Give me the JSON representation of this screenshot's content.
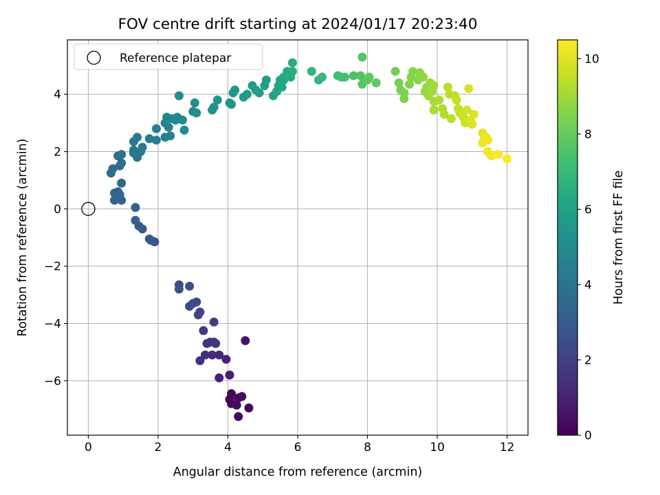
{
  "chart_data": {
    "type": "scatter",
    "title": "FOV centre drift starting at 2024/01/17 20:23:40",
    "xlabel": "Angular distance from reference (arcmin)",
    "ylabel": "Rotation from reference (arcmin)",
    "xlim": [
      -0.6,
      12.6
    ],
    "ylim": [
      -7.9,
      5.9
    ],
    "x_ticks": [
      0,
      2,
      4,
      6,
      8,
      10,
      12
    ],
    "y_ticks": [
      -6,
      -4,
      -2,
      0,
      2,
      4
    ],
    "grid": true,
    "legend": {
      "position": "top-left",
      "entries": [
        "Reference platepar"
      ]
    },
    "reference_point": {
      "x": 0,
      "y": 0
    },
    "colorbar": {
      "label": "Hours from first FF file",
      "colormap": "viridis",
      "range": [
        0,
        10.5
      ],
      "ticks": [
        0,
        2,
        4,
        6,
        8,
        10
      ]
    },
    "series": [
      {
        "points": [
          {
            "x": 4.5,
            "y": -4.6,
            "c": 0.6
          },
          {
            "x": 4.1,
            "y": -6.45,
            "c": 0.2
          },
          {
            "x": 4.3,
            "y": -6.6,
            "c": 0.25
          },
          {
            "x": 4.05,
            "y": -6.65,
            "c": 0.1
          },
          {
            "x": 4.1,
            "y": -6.8,
            "c": 0.15
          },
          {
            "x": 4.25,
            "y": -6.85,
            "c": 0.3
          },
          {
            "x": 4.6,
            "y": -6.95,
            "c": 0.05
          },
          {
            "x": 4.3,
            "y": -7.25,
            "c": 0.2
          },
          {
            "x": 4.4,
            "y": -6.55,
            "c": 0.35
          },
          {
            "x": 4.05,
            "y": -5.8,
            "c": 0.8
          },
          {
            "x": 3.75,
            "y": -5.9,
            "c": 1.0
          },
          {
            "x": 3.95,
            "y": -5.25,
            "c": 1.1
          },
          {
            "x": 3.75,
            "y": -5.1,
            "c": 1.2
          },
          {
            "x": 3.55,
            "y": -5.1,
            "c": 1.3
          },
          {
            "x": 3.35,
            "y": -5.1,
            "c": 1.35
          },
          {
            "x": 3.2,
            "y": -5.3,
            "c": 1.4
          },
          {
            "x": 3.4,
            "y": -4.7,
            "c": 1.5
          },
          {
            "x": 3.5,
            "y": -4.65,
            "c": 1.55
          },
          {
            "x": 3.6,
            "y": -4.65,
            "c": 1.6
          },
          {
            "x": 3.65,
            "y": -4.7,
            "c": 1.65
          },
          {
            "x": 3.3,
            "y": -4.25,
            "c": 1.8
          },
          {
            "x": 3.6,
            "y": -3.95,
            "c": 1.9
          },
          {
            "x": 3.2,
            "y": -3.6,
            "c": 2.0
          },
          {
            "x": 3.15,
            "y": -3.7,
            "c": 2.05
          },
          {
            "x": 2.9,
            "y": -3.4,
            "c": 2.2
          },
          {
            "x": 3.0,
            "y": -3.3,
            "c": 2.25
          },
          {
            "x": 3.1,
            "y": -3.25,
            "c": 2.3
          },
          {
            "x": 2.6,
            "y": -2.65,
            "c": 2.5
          },
          {
            "x": 2.6,
            "y": -2.8,
            "c": 2.55
          },
          {
            "x": 2.9,
            "y": -2.7,
            "c": 2.6
          },
          {
            "x": 1.9,
            "y": -1.15,
            "c": 2.8
          },
          {
            "x": 1.8,
            "y": -1.1,
            "c": 2.85
          },
          {
            "x": 1.75,
            "y": -1.05,
            "c": 2.9
          },
          {
            "x": 1.55,
            "y": -0.7,
            "c": 3.0
          },
          {
            "x": 1.45,
            "y": -0.6,
            "c": 3.05
          },
          {
            "x": 1.35,
            "y": -0.4,
            "c": 3.1
          },
          {
            "x": 1.35,
            "y": 0.05,
            "c": 3.2
          },
          {
            "x": 0.75,
            "y": 0.3,
            "c": 3.3
          },
          {
            "x": 0.95,
            "y": 0.3,
            "c": 3.35
          },
          {
            "x": 0.9,
            "y": 0.5,
            "c": 3.4
          },
          {
            "x": 0.85,
            "y": 0.6,
            "c": 3.45
          },
          {
            "x": 0.75,
            "y": 0.55,
            "c": 3.5
          },
          {
            "x": 0.95,
            "y": 0.9,
            "c": 3.55
          },
          {
            "x": 0.65,
            "y": 1.25,
            "c": 3.7
          },
          {
            "x": 0.7,
            "y": 1.4,
            "c": 3.75
          },
          {
            "x": 0.9,
            "y": 1.5,
            "c": 3.8
          },
          {
            "x": 0.95,
            "y": 1.6,
            "c": 3.85
          },
          {
            "x": 0.85,
            "y": 1.85,
            "c": 3.9
          },
          {
            "x": 0.95,
            "y": 1.9,
            "c": 3.95
          },
          {
            "x": 1.3,
            "y": 1.95,
            "c": 4.0
          },
          {
            "x": 1.4,
            "y": 1.8,
            "c": 4.05
          },
          {
            "x": 1.3,
            "y": 2.05,
            "c": 4.1
          },
          {
            "x": 1.5,
            "y": 2.0,
            "c": 4.15
          },
          {
            "x": 1.55,
            "y": 2.15,
            "c": 4.2
          },
          {
            "x": 1.3,
            "y": 2.35,
            "c": 4.25
          },
          {
            "x": 1.4,
            "y": 2.5,
            "c": 4.3
          },
          {
            "x": 1.75,
            "y": 2.45,
            "c": 4.4
          },
          {
            "x": 1.95,
            "y": 2.4,
            "c": 4.45
          },
          {
            "x": 1.95,
            "y": 2.8,
            "c": 4.5
          },
          {
            "x": 2.2,
            "y": 2.5,
            "c": 4.55
          },
          {
            "x": 2.35,
            "y": 2.55,
            "c": 4.6
          },
          {
            "x": 2.3,
            "y": 2.85,
            "c": 4.65
          },
          {
            "x": 2.2,
            "y": 3.0,
            "c": 4.7
          },
          {
            "x": 2.25,
            "y": 3.2,
            "c": 4.75
          },
          {
            "x": 2.4,
            "y": 3.15,
            "c": 4.8
          },
          {
            "x": 2.5,
            "y": 3.1,
            "c": 4.85
          },
          {
            "x": 2.55,
            "y": 3.2,
            "c": 4.9
          },
          {
            "x": 2.7,
            "y": 3.1,
            "c": 4.95
          },
          {
            "x": 2.75,
            "y": 2.75,
            "c": 5.0
          },
          {
            "x": 2.6,
            "y": 3.95,
            "c": 5.05
          },
          {
            "x": 3.0,
            "y": 3.4,
            "c": 5.1
          },
          {
            "x": 3.1,
            "y": 3.35,
            "c": 5.15
          },
          {
            "x": 3.05,
            "y": 3.7,
            "c": 5.2
          },
          {
            "x": 3.55,
            "y": 3.45,
            "c": 5.3
          },
          {
            "x": 3.6,
            "y": 3.55,
            "c": 5.35
          },
          {
            "x": 3.7,
            "y": 3.8,
            "c": 5.4
          },
          {
            "x": 4.1,
            "y": 3.65,
            "c": 5.45
          },
          {
            "x": 4.05,
            "y": 3.7,
            "c": 5.5
          },
          {
            "x": 4.15,
            "y": 4.05,
            "c": 5.55
          },
          {
            "x": 4.2,
            "y": 4.15,
            "c": 5.6
          },
          {
            "x": 4.45,
            "y": 3.9,
            "c": 5.7
          },
          {
            "x": 4.55,
            "y": 4.0,
            "c": 5.75
          },
          {
            "x": 4.7,
            "y": 4.3,
            "c": 5.8
          },
          {
            "x": 4.8,
            "y": 4.15,
            "c": 5.85
          },
          {
            "x": 4.9,
            "y": 4.05,
            "c": 5.9
          },
          {
            "x": 5.05,
            "y": 4.3,
            "c": 5.95
          },
          {
            "x": 5.1,
            "y": 4.5,
            "c": 6.0
          },
          {
            "x": 5.3,
            "y": 3.95,
            "c": 6.05
          },
          {
            "x": 5.4,
            "y": 4.1,
            "c": 6.1
          },
          {
            "x": 5.45,
            "y": 4.3,
            "c": 6.15
          },
          {
            "x": 5.5,
            "y": 4.5,
            "c": 6.2
          },
          {
            "x": 5.6,
            "y": 4.5,
            "c": 6.25
          },
          {
            "x": 5.55,
            "y": 4.25,
            "c": 6.3
          },
          {
            "x": 5.6,
            "y": 4.6,
            "c": 6.35
          },
          {
            "x": 5.7,
            "y": 4.8,
            "c": 6.4
          },
          {
            "x": 5.8,
            "y": 4.6,
            "c": 6.45
          },
          {
            "x": 5.85,
            "y": 4.8,
            "c": 6.5
          },
          {
            "x": 5.85,
            "y": 5.1,
            "c": 6.55
          },
          {
            "x": 6.4,
            "y": 4.8,
            "c": 6.8
          },
          {
            "x": 6.6,
            "y": 4.5,
            "c": 6.9
          },
          {
            "x": 6.7,
            "y": 4.6,
            "c": 7.0
          },
          {
            "x": 7.15,
            "y": 4.65,
            "c": 7.2
          },
          {
            "x": 7.25,
            "y": 4.6,
            "c": 7.3
          },
          {
            "x": 7.35,
            "y": 4.6,
            "c": 7.35
          },
          {
            "x": 7.6,
            "y": 4.65,
            "c": 7.5
          },
          {
            "x": 7.8,
            "y": 4.65,
            "c": 7.6
          },
          {
            "x": 7.85,
            "y": 5.3,
            "c": 7.65
          },
          {
            "x": 7.85,
            "y": 4.35,
            "c": 7.7
          },
          {
            "x": 8.0,
            "y": 4.5,
            "c": 7.8
          },
          {
            "x": 8.05,
            "y": 4.6,
            "c": 7.85
          },
          {
            "x": 8.25,
            "y": 4.4,
            "c": 7.9
          },
          {
            "x": 8.8,
            "y": 4.8,
            "c": 8.2
          },
          {
            "x": 8.9,
            "y": 4.4,
            "c": 8.3
          },
          {
            "x": 8.95,
            "y": 4.15,
            "c": 8.35
          },
          {
            "x": 9.05,
            "y": 4.05,
            "c": 8.4
          },
          {
            "x": 9.05,
            "y": 3.85,
            "c": 8.45
          },
          {
            "x": 9.2,
            "y": 4.35,
            "c": 8.5
          },
          {
            "x": 9.25,
            "y": 4.6,
            "c": 8.55
          },
          {
            "x": 9.3,
            "y": 4.8,
            "c": 8.6
          },
          {
            "x": 9.45,
            "y": 4.5,
            "c": 8.65
          },
          {
            "x": 9.5,
            "y": 4.75,
            "c": 8.7
          },
          {
            "x": 9.6,
            "y": 4.6,
            "c": 8.75
          },
          {
            "x": 9.65,
            "y": 4.1,
            "c": 8.8
          },
          {
            "x": 9.7,
            "y": 4.25,
            "c": 8.85
          },
          {
            "x": 9.75,
            "y": 3.95,
            "c": 8.9
          },
          {
            "x": 9.8,
            "y": 4.4,
            "c": 8.95
          },
          {
            "x": 9.85,
            "y": 4.1,
            "c": 9.0
          },
          {
            "x": 9.9,
            "y": 4.3,
            "c": 9.05
          },
          {
            "x": 9.9,
            "y": 3.75,
            "c": 9.1
          },
          {
            "x": 9.9,
            "y": 3.45,
            "c": 9.15
          },
          {
            "x": 10.05,
            "y": 3.8,
            "c": 9.2
          },
          {
            "x": 10.15,
            "y": 3.5,
            "c": 9.25
          },
          {
            "x": 10.2,
            "y": 3.3,
            "c": 9.3
          },
          {
            "x": 10.3,
            "y": 4.25,
            "c": 9.35
          },
          {
            "x": 10.35,
            "y": 4.0,
            "c": 9.4
          },
          {
            "x": 10.4,
            "y": 3.15,
            "c": 9.45
          },
          {
            "x": 10.5,
            "y": 3.95,
            "c": 9.5
          },
          {
            "x": 10.55,
            "y": 3.8,
            "c": 9.55
          },
          {
            "x": 10.6,
            "y": 3.5,
            "c": 9.6
          },
          {
            "x": 10.65,
            "y": 3.35,
            "c": 9.65
          },
          {
            "x": 10.75,
            "y": 3.2,
            "c": 9.7
          },
          {
            "x": 10.8,
            "y": 3.0,
            "c": 9.75
          },
          {
            "x": 10.85,
            "y": 3.45,
            "c": 9.8
          },
          {
            "x": 10.9,
            "y": 4.2,
            "c": 9.85
          },
          {
            "x": 10.95,
            "y": 3.1,
            "c": 9.9
          },
          {
            "x": 11.0,
            "y": 2.95,
            "c": 9.95
          },
          {
            "x": 11.05,
            "y": 3.3,
            "c": 10.0
          },
          {
            "x": 11.3,
            "y": 2.65,
            "c": 10.1
          },
          {
            "x": 11.35,
            "y": 2.45,
            "c": 10.15
          },
          {
            "x": 11.3,
            "y": 2.3,
            "c": 10.2
          },
          {
            "x": 11.4,
            "y": 2.5,
            "c": 10.25
          },
          {
            "x": 11.45,
            "y": 2.4,
            "c": 10.3
          },
          {
            "x": 11.45,
            "y": 2.0,
            "c": 10.35
          },
          {
            "x": 11.55,
            "y": 1.85,
            "c": 10.4
          },
          {
            "x": 11.75,
            "y": 1.9,
            "c": 10.45
          },
          {
            "x": 12.0,
            "y": 1.75,
            "c": 10.5
          }
        ]
      }
    ]
  }
}
